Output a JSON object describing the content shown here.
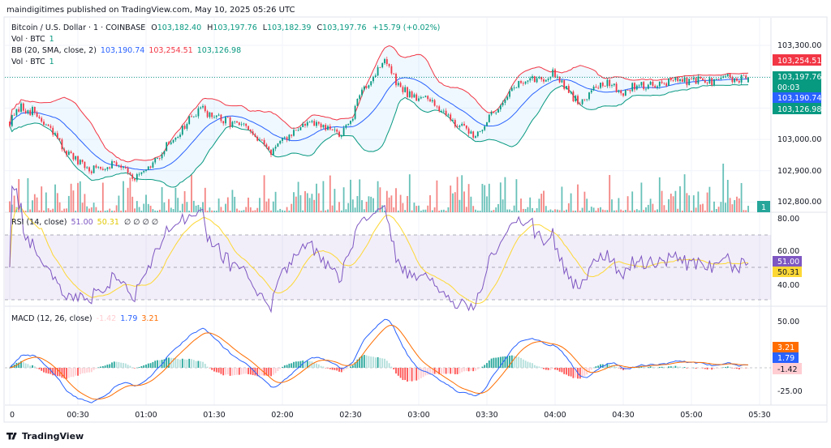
{
  "header": {
    "published": "maindigitimes published on TradingView.com, May 10, 2025 05:26 UTC"
  },
  "legend": {
    "symbol": "Bitcoin / U.S. Dollar · 1 · COINBASE",
    "o_label": "O",
    "o": "103,182.40",
    "h_label": "H",
    "h": "103,197.76",
    "l_label": "L",
    "l": "103,182.39",
    "c_label": "C",
    "c": "103,197.76",
    "change": "+15.79 (+0.02%)",
    "vol_label": "Vol · BTC",
    "vol": "1",
    "bb_label": "BB (20, SMA, close, 2)",
    "bb_basis": "103,190.74",
    "bb_upper": "103,254.51",
    "bb_lower": "103,126.98",
    "vol2_label": "Vol · BTC",
    "vol2": "1",
    "rsi_label": "RSI (14, close)",
    "rsi": "51.00",
    "rsi_ma": "50.31",
    "rsi_extra": "∅ ∅ ∅ ∅",
    "macd_label": "MACD (12, 26, close)",
    "macd_hist": "-1.42",
    "macd": "1.79",
    "macd_signal": "3.21"
  },
  "price_axis": {
    "ticks": [
      "103,300.00",
      "103,000.00",
      "102,900.00",
      "102,800.00"
    ],
    "tags": {
      "upper": "103,254.51",
      "last": "103,197.76",
      "countdown": "00:03",
      "basis": "103,190.74",
      "lower": "103,126.98",
      "volume": "1"
    }
  },
  "rsi_axis": {
    "ticks": [
      "80.00",
      "60.00",
      "40.00"
    ],
    "tags": {
      "rsi": "51.00",
      "ma": "50.31"
    }
  },
  "macd_axis": {
    "ticks": [
      "50.00",
      "-25.00"
    ],
    "tags": {
      "signal": "3.21",
      "macd": "1.79",
      "hist": "-1.42"
    }
  },
  "time_axis": {
    "ticks": [
      "0",
      "00:30",
      "01:00",
      "01:30",
      "02:00",
      "02:30",
      "03:00",
      "03:30",
      "04:00",
      "04:30",
      "05:00",
      "05:30"
    ]
  },
  "footer": {
    "brand": "TradingView"
  },
  "colors": {
    "up": "#089981",
    "down": "#f23645",
    "bb_basis": "#2962ff",
    "bb_upper": "#f23645",
    "bb_lower": "#089981",
    "rsi": "#7e57c2",
    "rsi_ma": "#fdd835",
    "macd": "#2962ff",
    "signal": "#ff6d00"
  },
  "chart_data": {
    "type": "candlestick",
    "symbol": "BTCUSD",
    "exchange": "COINBASE",
    "interval": "1",
    "x_unit": "time (UTC)",
    "close_samples_5min": {
      "times": [
        "00:00",
        "00:05",
        "00:10",
        "00:15",
        "00:20",
        "00:25",
        "00:30",
        "00:35",
        "00:40",
        "00:45",
        "00:50",
        "00:55",
        "01:00",
        "01:05",
        "01:10",
        "01:15",
        "01:20",
        "01:25",
        "01:30",
        "01:35",
        "01:40",
        "01:45",
        "01:50",
        "01:55",
        "02:00",
        "02:05",
        "02:10",
        "02:15",
        "02:20",
        "02:25",
        "02:30",
        "02:35",
        "02:40",
        "02:45",
        "02:50",
        "02:55",
        "03:00",
        "03:05",
        "03:10",
        "03:15",
        "03:20",
        "03:25",
        "03:30",
        "03:35",
        "03:40",
        "03:45",
        "03:50",
        "03:55",
        "04:00",
        "04:05",
        "04:10",
        "04:15",
        "04:20",
        "04:25",
        "04:30",
        "04:35",
        "04:40",
        "04:45",
        "04:50",
        "04:55",
        "05:00",
        "05:05",
        "05:10",
        "05:15",
        "05:20",
        "05:25"
      ],
      "close": [
        103057,
        103100,
        103090,
        103050,
        103010,
        102960,
        102925,
        102902,
        102912,
        102925,
        102920,
        102876,
        102892,
        102940,
        102988,
        103025,
        103070,
        103096,
        103070,
        103058,
        103050,
        103030,
        102990,
        102965,
        102990,
        103025,
        103050,
        103045,
        103030,
        103018,
        103050,
        103160,
        103199,
        103260,
        103180,
        103148,
        103135,
        103122,
        103100,
        103060,
        103030,
        103018,
        103055,
        103105,
        103155,
        103180,
        103190,
        103199,
        103212,
        103165,
        103115,
        103150,
        103180,
        103175,
        103148,
        103172,
        103173,
        103180,
        103186,
        103185,
        103186,
        103188,
        103182,
        103200,
        103186,
        103197.76
      ]
    },
    "price_ylim": [
      102780,
      103340
    ],
    "rsi_ylim": [
      25,
      85
    ],
    "rsi_bands": [
      30,
      70
    ],
    "macd_ylim": [
      -35,
      55
    ],
    "grid": true
  }
}
